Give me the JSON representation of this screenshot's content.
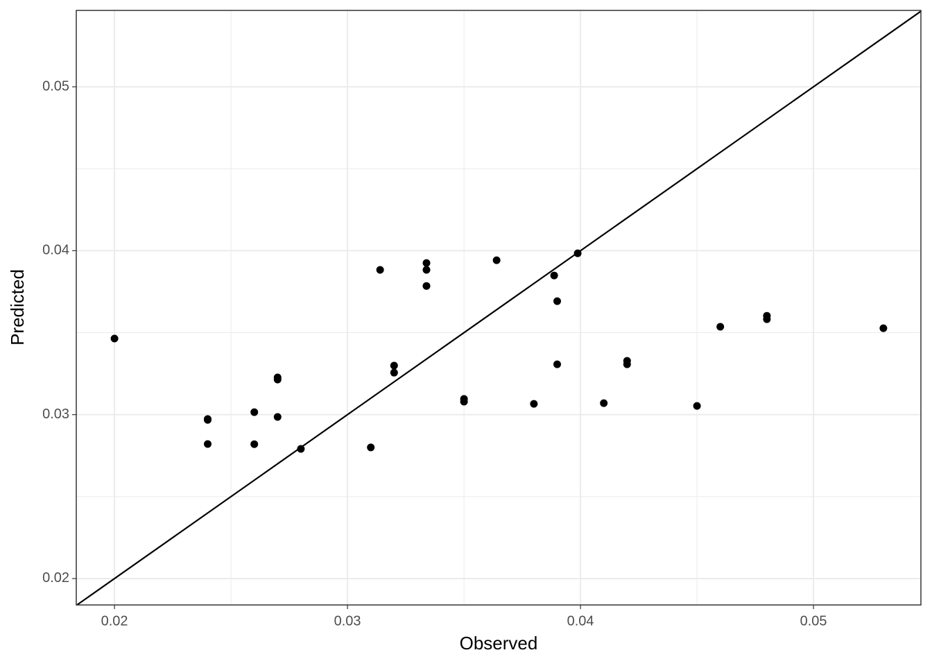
{
  "chart_data": {
    "type": "scatter",
    "x_label": "Observed",
    "y_label": "Predicted",
    "xlim": [
      0.01836,
      0.05461
    ],
    "ylim": [
      0.01839,
      0.05466
    ],
    "xticks": [
      0.02,
      0.03,
      0.04,
      0.05
    ],
    "yticks": [
      0.02,
      0.03,
      0.04,
      0.05
    ],
    "grid": true,
    "minor_grid": true,
    "identity_line": true,
    "series": [
      {
        "color": "#000000",
        "x": [
          0.02,
          0.024,
          0.024,
          0.024,
          0.026,
          0.026,
          0.027,
          0.027,
          0.027,
          0.028,
          0.031,
          0.0314,
          0.032,
          0.032,
          0.03339,
          0.03339,
          0.03339,
          0.035,
          0.035,
          0.0364,
          0.038,
          0.03887,
          0.039,
          0.039,
          0.03988,
          0.041,
          0.042,
          0.042,
          0.045,
          0.046,
          0.048,
          0.048,
          0.053
        ],
        "values": [
          0.03464,
          0.02973,
          0.02968,
          0.02821,
          0.03015,
          0.0282,
          0.03227,
          0.03214,
          0.02986,
          0.02791,
          0.028,
          0.03883,
          0.03299,
          0.03256,
          0.03925,
          0.03883,
          0.03785,
          0.03096,
          0.03079,
          0.03942,
          0.03066,
          0.03849,
          0.03692,
          0.03307,
          0.03984,
          0.0307,
          0.03328,
          0.03307,
          0.03053,
          0.03536,
          0.03603,
          0.03582,
          0.03527
        ]
      }
    ]
  }
}
